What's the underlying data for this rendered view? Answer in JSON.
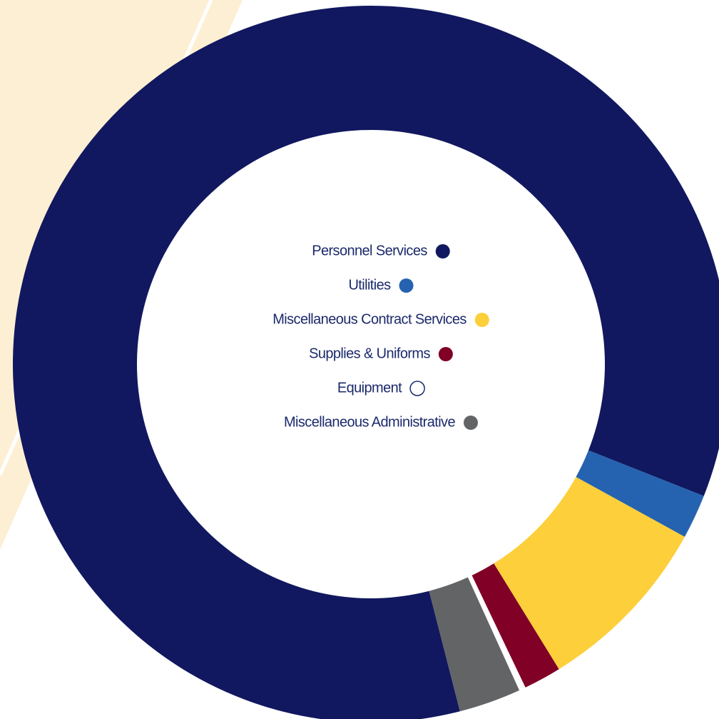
{
  "chart_data": {
    "type": "donut",
    "categories": [
      "Personnel Services",
      "Utilities",
      "Miscellaneous Contract Services",
      "Supplies & Uniforms",
      "Equipment",
      "Miscellaneous Administrative"
    ],
    "values": [
      85,
      2,
      8.2,
      1.7,
      0.3,
      2.8
    ],
    "colors": [
      "#11185f",
      "#2563b0",
      "#fdcf3a",
      "#800026",
      "#ffffff",
      "#636466"
    ]
  }
}
